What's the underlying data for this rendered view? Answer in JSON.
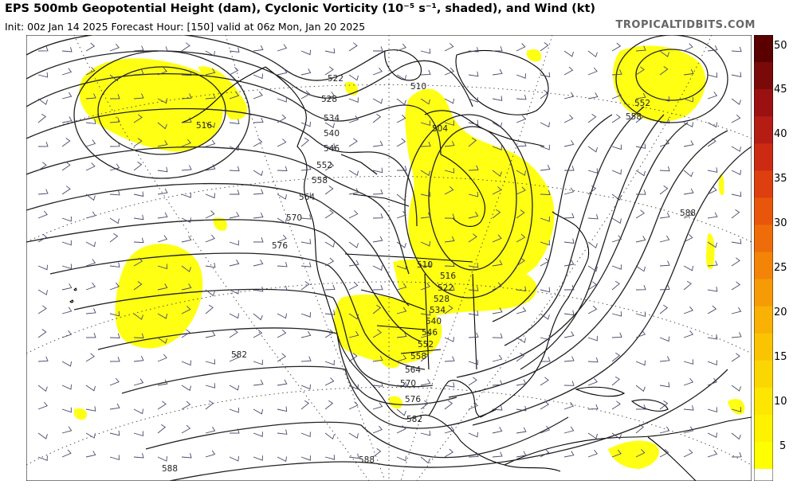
{
  "header": {
    "title": "EPS 500mb Geopotential Height (dam), Cyclonic Vorticity (10⁻⁵ s⁻¹, shaded), and Wind (kt)",
    "subtitle": "Init: 00z Jan 14 2025   Forecast Hour: [150]   valid at 06z Mon, Jan 20 2025",
    "brand": "TROPICALTIDBITS.COM"
  },
  "colorbar": {
    "ticks": [
      "50",
      "45",
      "40",
      "35",
      "30",
      "25",
      "20",
      "15",
      "10",
      "5"
    ],
    "colors": [
      "#5a0000",
      "#7a0a0a",
      "#9b1111",
      "#b51c14",
      "#cc2a12",
      "#dd3f0f",
      "#e8560c",
      "#ef6c0a",
      "#f38408",
      "#f69b06",
      "#f8b104",
      "#fac403",
      "#fcd602",
      "#fde601",
      "#fef200",
      "#ffff00"
    ],
    "bottom_color": "#ffffff"
  },
  "map": {
    "vorticity_color": "#ffff00",
    "contour_color": "#222222",
    "coast_color": "#000000",
    "height_labels": [
      "510",
      "522",
      "528",
      "534",
      "540",
      "546",
      "552",
      "558",
      "564",
      "570",
      "576",
      "582",
      "588",
      "504",
      "516",
      "510",
      "516",
      "522",
      "528",
      "534",
      "540",
      "546",
      "552",
      "558",
      "564",
      "570",
      "576",
      "582",
      "588",
      "588",
      "558",
      "552"
    ]
  }
}
